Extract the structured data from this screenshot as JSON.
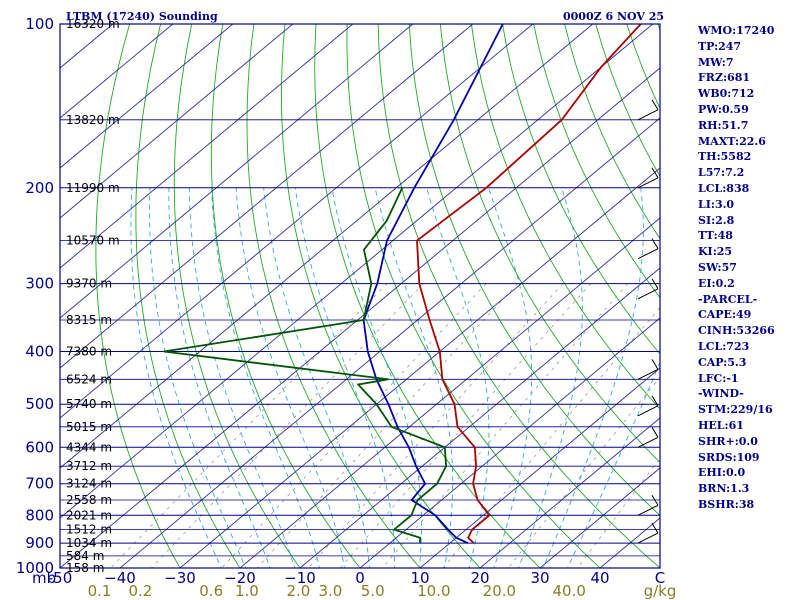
{
  "header": {
    "station": "LTBM (17240) Sounding",
    "time": "0000Z  6 NOV 25"
  },
  "indices": [
    "WMO:17240",
    "TP:247",
    "MW:7",
    "FRZ:681",
    "WB0:712",
    "PW:0.59",
    "RH:51.7",
    "MAXT:22.6",
    "TH:5582",
    "L57:7.2",
    "LCL:838",
    "LI:3.0",
    "SI:2.8",
    "TT:48",
    "KI:25",
    "SW:57",
    "EI:0.2",
    "-PARCEL-",
    "CAPE:49",
    "CINH:53266",
    "LCL:723",
    "CAP:5.3",
    "LFC:-1",
    "-WIND-",
    "STM:229/16",
    "HEL:61",
    "SHR+:0.0",
    "SRDS:109",
    "EHI:0.0",
    "BRN:1.3",
    "BSHR:38"
  ],
  "colors": {
    "axis": "#00008b",
    "isobar": "#00008b",
    "isotherm": "#2f2fa0",
    "dryadiabat": "#22aa22",
    "moistadiabat": "#33aadd",
    "mixing": "#999999",
    "temp": "#aa0000",
    "dewpoint": "#005500",
    "parcel": "#0000aa",
    "wind": "#000000",
    "mixlabel": "#8b7d23"
  },
  "chart_data": {
    "type": "skewt",
    "title": "LTBM (17240) Sounding",
    "xlabel": "°C",
    "ylabel": "mb",
    "x_unit": "C",
    "mixing_unit": "g/kg",
    "temp_ticks": [
      -50,
      -40,
      -30,
      -20,
      -10,
      0,
      10,
      20,
      30,
      40
    ],
    "temp_tick_labels": [
      "-50",
      "−40",
      "−30",
      "−20",
      "−10",
      "0",
      "10",
      "20",
      "30",
      "40"
    ],
    "x_end_label": "C",
    "pressure_ticks": [
      100,
      200,
      300,
      400,
      500,
      600,
      700,
      800,
      900,
      1000
    ],
    "pressure_labels": [
      "100",
      "200",
      "300",
      "400",
      "500",
      "600",
      "700",
      "800",
      "900",
      "1000"
    ],
    "mb_label": "mb",
    "mixing_ratios": [
      0.1,
      0.2,
      0.6,
      1.0,
      2.0,
      3.0,
      5.0,
      10.0,
      20.0,
      40.0
    ],
    "mixing_labels": [
      "0.1",
      "0.2",
      "0.6",
      "1.0",
      "2.0",
      "3.0",
      "5.0",
      "10.0",
      "20.0",
      "40.0"
    ],
    "mixing_unit_label": "g/kg",
    "levels": [
      {
        "p": 100,
        "z": "16320 m"
      },
      {
        "p": 150,
        "z": "13820 m"
      },
      {
        "p": 200,
        "z": "11990 m"
      },
      {
        "p": 250,
        "z": "10570 m"
      },
      {
        "p": 300,
        "z": "9370 m"
      },
      {
        "p": 350,
        "z": "8315 m"
      },
      {
        "p": 400,
        "z": "7380 m"
      },
      {
        "p": 450,
        "z": "6524 m"
      },
      {
        "p": 500,
        "z": "5740 m"
      },
      {
        "p": 550,
        "z": "5015 m"
      },
      {
        "p": 600,
        "z": "4344 m"
      },
      {
        "p": 650,
        "z": "3712 m"
      },
      {
        "p": 700,
        "z": "3124 m"
      },
      {
        "p": 750,
        "z": "2558 m"
      },
      {
        "p": 800,
        "z": "2021 m"
      },
      {
        "p": 850,
        "z": "1512 m"
      },
      {
        "p": 900,
        "z": "1034 m"
      },
      {
        "p": 950,
        "z": "584 m"
      },
      {
        "p": 1000,
        "z": "158 m"
      }
    ],
    "temperature": [
      {
        "p": 100,
        "t": -62
      },
      {
        "p": 120,
        "t": -60
      },
      {
        "p": 150,
        "t": -56
      },
      {
        "p": 200,
        "t": -55
      },
      {
        "p": 250,
        "t": -56
      },
      {
        "p": 300,
        "t": -47
      },
      {
        "p": 350,
        "t": -38
      },
      {
        "p": 400,
        "t": -30
      },
      {
        "p": 450,
        "t": -24
      },
      {
        "p": 500,
        "t": -17
      },
      {
        "p": 550,
        "t": -12
      },
      {
        "p": 600,
        "t": -5
      },
      {
        "p": 650,
        "t": -1
      },
      {
        "p": 700,
        "t": 2
      },
      {
        "p": 750,
        "t": 6
      },
      {
        "p": 800,
        "t": 11
      },
      {
        "p": 850,
        "t": 11
      },
      {
        "p": 880,
        "t": 12
      },
      {
        "p": 900,
        "t": 14
      }
    ],
    "dewpoint": [
      {
        "p": 200,
        "t": -69
      },
      {
        "p": 230,
        "t": -65
      },
      {
        "p": 260,
        "t": -63
      },
      {
        "p": 300,
        "t": -55
      },
      {
        "p": 350,
        "t": -49
      },
      {
        "p": 400,
        "t": -76
      },
      {
        "p": 450,
        "t": -33
      },
      {
        "p": 460,
        "t": -37
      },
      {
        "p": 500,
        "t": -30
      },
      {
        "p": 550,
        "t": -23
      },
      {
        "p": 600,
        "t": -10
      },
      {
        "p": 650,
        "t": -6
      },
      {
        "p": 700,
        "t": -4
      },
      {
        "p": 750,
        "t": -4
      },
      {
        "p": 800,
        "t": -2
      },
      {
        "p": 850,
        "t": -2
      },
      {
        "p": 880,
        "t": 4
      },
      {
        "p": 900,
        "t": 5
      }
    ],
    "parcel": [
      {
        "p": 100,
        "t": -85
      },
      {
        "p": 150,
        "t": -74
      },
      {
        "p": 200,
        "t": -67
      },
      {
        "p": 250,
        "t": -61
      },
      {
        "p": 300,
        "t": -54
      },
      {
        "p": 350,
        "t": -49
      },
      {
        "p": 400,
        "t": -42
      },
      {
        "p": 450,
        "t": -35
      },
      {
        "p": 500,
        "t": -28
      },
      {
        "p": 550,
        "t": -22
      },
      {
        "p": 600,
        "t": -16
      },
      {
        "p": 650,
        "t": -11
      },
      {
        "p": 700,
        "t": -6
      },
      {
        "p": 750,
        "t": -5
      },
      {
        "p": 800,
        "t": 2
      },
      {
        "p": 850,
        "t": 7
      },
      {
        "p": 880,
        "t": 10
      },
      {
        "p": 900,
        "t": 13
      }
    ],
    "wind_levels": [
      150,
      200,
      270,
      320,
      450,
      525,
      600,
      800,
      900
    ]
  }
}
